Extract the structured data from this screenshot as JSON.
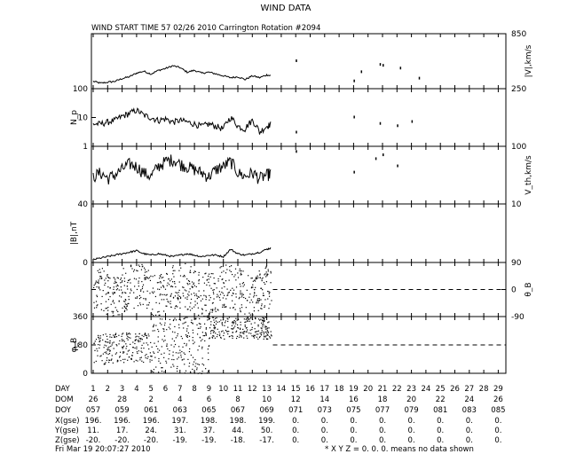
{
  "title": "WIND DATA",
  "subtitle": "WIND START TIME  57 02/26 2010 Carrington Rotation #2094",
  "footer": {
    "timestamp": "Fri Mar 19 20:07:27 2010",
    "note": "* X Y Z = 0. 0. 0. means no data shown"
  },
  "table": {
    "row_labels": [
      "DAY",
      "DOM",
      "DOY",
      "X(gse)",
      "Y(gse)",
      "Z(gse)"
    ],
    "day": [
      "1",
      "2",
      "3",
      "4",
      "5",
      "6",
      "7",
      "8",
      "9",
      "10",
      "11",
      "12",
      "13",
      "14",
      "15",
      "16",
      "17",
      "18",
      "19",
      "20",
      "21",
      "22",
      "23",
      "24",
      "25",
      "26",
      "27",
      "28",
      "29"
    ],
    "dom": [
      "26",
      "",
      "28",
      "",
      "2",
      "",
      "4",
      "",
      "6",
      "",
      "8",
      "",
      "10",
      "",
      "12",
      "",
      "14",
      "",
      "16",
      "",
      "18",
      "",
      "20",
      "",
      "22",
      "",
      "24",
      "",
      "26"
    ],
    "doy": [
      "057",
      "",
      "059",
      "",
      "061",
      "",
      "063",
      "",
      "065",
      "",
      "067",
      "",
      "069",
      "",
      "071",
      "",
      "073",
      "",
      "075",
      "",
      "077",
      "",
      "079",
      "",
      "081",
      "",
      "083",
      "",
      "085"
    ],
    "x_gse": [
      "196.",
      "",
      "196.",
      "",
      "196.",
      "",
      "197.",
      "",
      "198.",
      "",
      "198.",
      "",
      "199.",
      "",
      "0.",
      "",
      "0.",
      "",
      "0.",
      "",
      "0.",
      "",
      "0.",
      "",
      "0.",
      "",
      "0.",
      "",
      "0."
    ],
    "y_gse": [
      "11.",
      "",
      "17.",
      "",
      "24.",
      "",
      "31.",
      "",
      "37.",
      "",
      "44.",
      "",
      "50.",
      "",
      "0.",
      "",
      "0.",
      "",
      "0.",
      "",
      "0.",
      "",
      "0.",
      "",
      "0.",
      "",
      "0.",
      "",
      "0."
    ],
    "z_gse": [
      "-20.",
      "",
      "-20.",
      "",
      "-20.",
      "",
      "-19.",
      "",
      "-19.",
      "",
      "-18.",
      "",
      "-17.",
      "",
      "0.",
      "",
      "0.",
      "",
      "0.",
      "",
      "0.",
      "",
      "0.",
      "",
      "0.",
      "",
      "0.",
      "",
      "0."
    ]
  },
  "chart_data": [
    {
      "type": "line",
      "panel": "speed",
      "ylabel": "|V|,km/s",
      "ytick_labels": [
        "250",
        "850"
      ],
      "ylim": [
        250,
        850
      ],
      "axis_side": "right",
      "series": [
        {
          "x": [
            1.0,
            1.5,
            2.0,
            2.5,
            3.0,
            3.5,
            4.0,
            4.5,
            5.0,
            5.5,
            6.0,
            6.5,
            7.0,
            7.5,
            8.0,
            8.5,
            9.0,
            9.5,
            10.0,
            10.5,
            11.0,
            11.5,
            12.0,
            12.5,
            13.0,
            13.3
          ],
          "y": [
            330,
            310,
            320,
            330,
            360,
            380,
            420,
            440,
            410,
            450,
            470,
            500,
            480,
            430,
            450,
            420,
            430,
            410,
            390,
            370,
            380,
            350,
            390,
            370,
            400,
            390
          ]
        }
      ],
      "sparse": {
        "x": [
          15.0,
          19.0,
          19.5,
          20.8,
          21.0,
          22.2,
          23.5
        ],
        "y": [
          550,
          330,
          430,
          510,
          500,
          470,
          360
        ]
      }
    },
    {
      "type": "line",
      "panel": "density",
      "ylabel": "N_p",
      "ytick_labels": [
        "1",
        "10",
        "100"
      ],
      "ylim": [
        1,
        100
      ],
      "log_scale": true,
      "axis_side": "left",
      "series": [
        {
          "x": [
            1.0,
            1.5,
            2.0,
            2.5,
            3.0,
            3.5,
            4.0,
            4.5,
            5.0,
            5.5,
            6.0,
            6.5,
            7.0,
            7.5,
            8.0,
            8.5,
            9.0,
            9.5,
            10.0,
            10.5,
            11.0,
            11.5,
            12.0,
            12.5,
            13.0,
            13.3
          ],
          "y": [
            6,
            6,
            7,
            8,
            11,
            14,
            18,
            12,
            10,
            8,
            9,
            7,
            8,
            7,
            6,
            5,
            6,
            5,
            4,
            10,
            5,
            4,
            8,
            3,
            5,
            6
          ]
        }
      ],
      "sparse": {
        "x": [
          15.0,
          19.0,
          20.8,
          22.0,
          23.0
        ],
        "y": [
          3,
          10,
          6,
          5,
          7
        ]
      }
    },
    {
      "type": "line",
      "panel": "thermal_speed",
      "ylabel": "V_th,km/s",
      "ytick_labels": [
        "10",
        "100"
      ],
      "ylim": [
        10,
        100
      ],
      "log_scale": true,
      "axis_side": "right",
      "series": [
        {
          "x": [
            1.0,
            1.5,
            2.0,
            2.5,
            3.0,
            3.5,
            4.0,
            4.5,
            5.0,
            5.5,
            6.0,
            6.5,
            7.0,
            7.5,
            8.0,
            8.5,
            9.0,
            9.5,
            10.0,
            10.5,
            11.0,
            11.5,
            12.0,
            12.5,
            13.0,
            13.3
          ],
          "y": [
            30,
            35,
            28,
            32,
            40,
            50,
            45,
            35,
            30,
            45,
            55,
            60,
            50,
            45,
            40,
            35,
            30,
            40,
            45,
            55,
            35,
            30,
            35,
            28,
            32,
            35
          ]
        }
      ],
      "sparse": {
        "x": [
          15.0,
          19.0,
          20.5,
          21.0,
          22.0
        ],
        "y": [
          80,
          35,
          60,
          70,
          45
        ]
      }
    },
    {
      "type": "line",
      "panel": "magnetic_field",
      "ylabel": "|B|,nT",
      "ytick_labels": [
        "0",
        "40"
      ],
      "ylim": [
        0,
        40
      ],
      "axis_side": "left",
      "series": [
        {
          "x": [
            1.0,
            1.5,
            2.0,
            2.5,
            3.0,
            3.5,
            4.0,
            4.5,
            5.0,
            5.5,
            6.0,
            6.5,
            7.0,
            7.5,
            8.0,
            8.5,
            9.0,
            9.5,
            10.0,
            10.5,
            11.0,
            11.5,
            12.0,
            12.5,
            13.0,
            13.3
          ],
          "y": [
            2,
            3,
            4,
            5,
            6,
            7,
            8,
            6,
            5,
            6,
            5,
            4,
            5,
            6,
            5,
            4,
            5,
            5,
            4,
            9,
            6,
            5,
            6,
            7,
            9,
            10
          ]
        }
      ]
    },
    {
      "type": "scatter",
      "panel": "theta_B",
      "ylabel": "θ_B",
      "ytick_labels": [
        "-90",
        "0",
        "90"
      ],
      "ylim": [
        -90,
        90
      ],
      "axis_side": "right",
      "reference_line": 0,
      "x_range": [
        1,
        13.3
      ]
    },
    {
      "type": "scatter",
      "panel": "phi_B",
      "ylabel": "φ_B",
      "ytick_labels": [
        "0",
        "180",
        "360"
      ],
      "ylim": [
        0,
        360
      ],
      "axis_side": "left",
      "reference_line": 180,
      "x_range": [
        1,
        13.3
      ]
    }
  ]
}
